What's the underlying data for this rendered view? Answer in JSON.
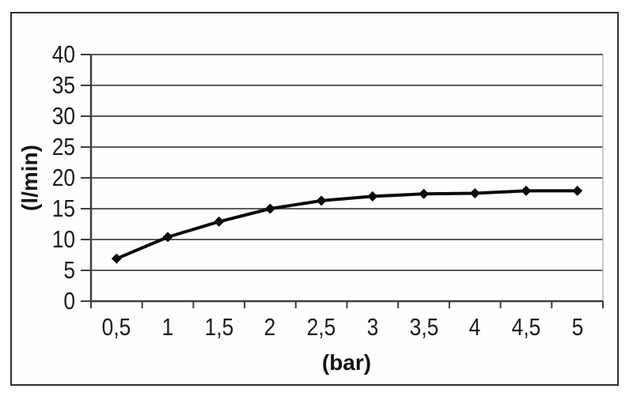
{
  "chart_data": {
    "type": "line",
    "x": [
      0.5,
      1,
      1.5,
      2,
      2.5,
      3,
      3.5,
      4,
      4.5,
      5
    ],
    "x_tick_labels": [
      "0,5",
      "1",
      "1,5",
      "2",
      "2,5",
      "3",
      "3,5",
      "4",
      "4,5",
      "5"
    ],
    "values": [
      6.9,
      10.4,
      12.9,
      15.0,
      16.3,
      17.0,
      17.4,
      17.5,
      17.9,
      17.9
    ],
    "xlabel": "(bar)",
    "ylabel": "(l/min)",
    "y_ticks": [
      0,
      5,
      10,
      15,
      20,
      25,
      30,
      35,
      40
    ],
    "ylim": [
      0,
      40
    ],
    "grid": "horizontal-only",
    "legend": "none",
    "marker": "diamond",
    "colors": {
      "series": "#0a0a0a",
      "gridline": "#5c5c5c",
      "axis": "#3d3d3d",
      "plot_right_border": "#b5b5b5",
      "frame": "#2e2e2e",
      "text": "#1c1c1c",
      "background": "#fefefe"
    }
  }
}
